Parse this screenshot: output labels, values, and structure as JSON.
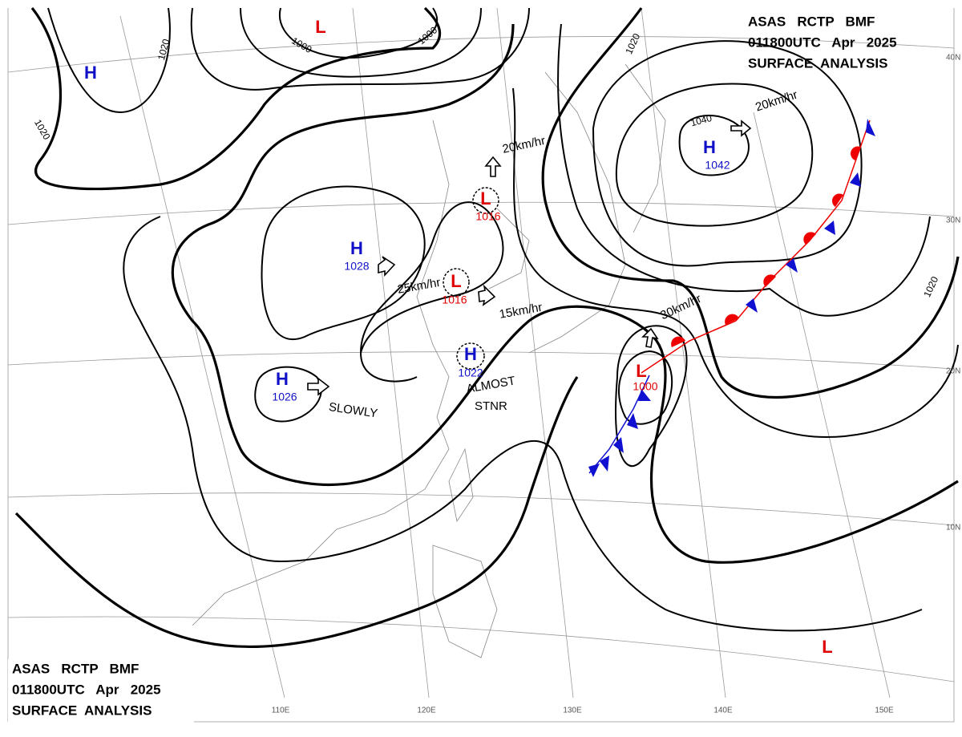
{
  "header": {
    "lines": [
      "ASAS   RCTP   BMF",
      "011800UTC   Apr   2025",
      "SURFACE  ANALYSIS"
    ]
  },
  "centers": [
    {
      "type": "H",
      "value": 1042
    },
    {
      "type": "L",
      "value": 1016
    },
    {
      "type": "H",
      "value": 1028
    },
    {
      "type": "L",
      "value": 1016
    },
    {
      "type": "H",
      "value": 1022
    },
    {
      "type": "H",
      "value": 1026
    },
    {
      "type": "L",
      "value": 1000
    },
    {
      "type": "H"
    },
    {
      "type": "L"
    },
    {
      "type": "L"
    }
  ],
  "isobar_labels": [
    "1020",
    "1020",
    "1020",
    "1020",
    "1000",
    "1000",
    "1040"
  ],
  "motions": [
    "20km/hr",
    "20km/hr",
    "25km/hr",
    "15km/hr",
    "30km/hr",
    "SLOWLY",
    "ALMOST",
    "STNR"
  ],
  "latitudes": [
    "40N",
    "30N",
    "20N",
    "10N"
  ],
  "longitudes": [
    "110E",
    "120E",
    "130E",
    "140E",
    "150E"
  ]
}
